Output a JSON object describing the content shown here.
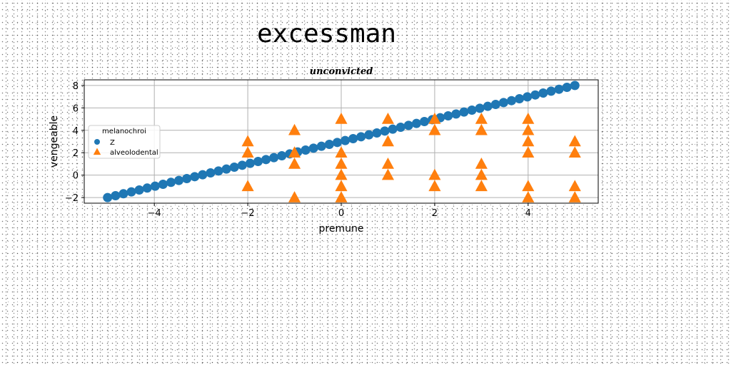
{
  "page": {
    "title": "excessman"
  },
  "chart_data": {
    "type": "scatter",
    "title": "unconvicted",
    "xlabel": "premune",
    "ylabel": "vengeable",
    "xlim": [
      -5.5,
      5.5
    ],
    "ylim": [
      -2.5,
      8.5
    ],
    "xticks": [
      -4,
      -2,
      0,
      2,
      4
    ],
    "yticks": [
      -2,
      0,
      2,
      4,
      6,
      8
    ],
    "grid": true,
    "legend": {
      "title": "melanochroi",
      "placement": "center-left"
    },
    "series": [
      {
        "name": "Z",
        "marker": "circle",
        "color": "#1f77b4",
        "x_range": [
          -5,
          5
        ],
        "n_points": 60,
        "y_at_x_min": -2,
        "y_at_x_max": 8
      },
      {
        "name": "alveolodental",
        "marker": "triangle",
        "color": "#ff7f0e",
        "points": [
          [
            -2,
            3
          ],
          [
            -2,
            2
          ],
          [
            -2,
            -1
          ],
          [
            -1,
            4
          ],
          [
            -1,
            2
          ],
          [
            -1,
            1
          ],
          [
            -1,
            -2
          ],
          [
            0,
            5
          ],
          [
            0,
            2
          ],
          [
            0,
            1
          ],
          [
            0,
            0
          ],
          [
            0,
            -1
          ],
          [
            0,
            -2
          ],
          [
            1,
            5
          ],
          [
            1,
            3
          ],
          [
            1,
            1
          ],
          [
            1,
            0
          ],
          [
            2,
            5
          ],
          [
            2,
            4
          ],
          [
            2,
            0
          ],
          [
            2,
            -1
          ],
          [
            3,
            5
          ],
          [
            3,
            4
          ],
          [
            3,
            1
          ],
          [
            3,
            0
          ],
          [
            3,
            -1
          ],
          [
            4,
            5
          ],
          [
            4,
            4
          ],
          [
            4,
            3
          ],
          [
            4,
            2
          ],
          [
            4,
            -1
          ],
          [
            4,
            -2
          ],
          [
            5,
            3
          ],
          [
            5,
            2
          ],
          [
            5,
            -1
          ],
          [
            5,
            -2
          ]
        ]
      }
    ]
  }
}
